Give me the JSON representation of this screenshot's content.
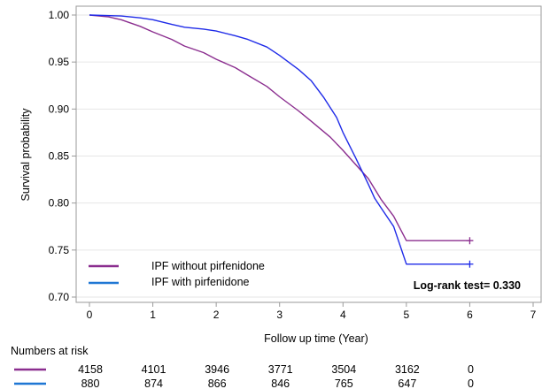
{
  "chart_data": {
    "type": "line",
    "xlabel": "Follow up time (Year)",
    "ylabel": "Survival probability",
    "xlim": [
      0,
      7
    ],
    "ylim": [
      0.7,
      1.0
    ],
    "x_ticks": [
      0,
      1,
      2,
      3,
      4,
      5,
      6,
      7
    ],
    "y_ticks": [
      "0.70",
      "0.75",
      "0.80",
      "0.85",
      "0.90",
      "0.95",
      "1.00"
    ],
    "grid": "horizontal",
    "legend_position": "bottom-left",
    "annotation": "Log-rank test= 0.330",
    "series": [
      {
        "name": "IPF without pirfenidone",
        "color": "#8B2E8F",
        "x": [
          0,
          0.3,
          0.5,
          0.8,
          1.0,
          1.3,
          1.5,
          1.8,
          2.0,
          2.3,
          2.5,
          2.8,
          3.0,
          3.3,
          3.5,
          3.8,
          4.0,
          4.2,
          4.4,
          4.6,
          4.8,
          5.0,
          6.0
        ],
        "y": [
          1.0,
          0.998,
          0.995,
          0.988,
          0.982,
          0.974,
          0.967,
          0.96,
          0.953,
          0.944,
          0.936,
          0.924,
          0.913,
          0.898,
          0.887,
          0.87,
          0.856,
          0.841,
          0.826,
          0.804,
          0.786,
          0.76,
          0.76
        ]
      },
      {
        "name": "IPF with pirfenidone",
        "color": "#1F2BE8",
        "x": [
          0,
          0.5,
          0.8,
          1.0,
          1.3,
          1.5,
          1.8,
          2.0,
          2.3,
          2.5,
          2.8,
          3.0,
          3.3,
          3.5,
          3.7,
          3.9,
          4.0,
          4.2,
          4.4,
          4.5,
          4.6,
          4.8,
          4.9,
          5.0,
          6.0
        ],
        "y": [
          1.0,
          0.999,
          0.997,
          0.995,
          0.99,
          0.987,
          0.985,
          0.983,
          0.978,
          0.974,
          0.966,
          0.957,
          0.942,
          0.93,
          0.912,
          0.891,
          0.875,
          0.848,
          0.82,
          0.805,
          0.795,
          0.775,
          0.755,
          0.735,
          0.735
        ]
      }
    ],
    "censor_marks": [
      {
        "series": 0,
        "x": 6.0,
        "y": 0.76
      },
      {
        "series": 1,
        "x": 6.0,
        "y": 0.735
      }
    ]
  },
  "risk_table": {
    "title": "Numbers at risk",
    "times": [
      0,
      1,
      2,
      3,
      4,
      5,
      6
    ],
    "rows": [
      {
        "series": 0,
        "values": [
          "4158",
          "4101",
          "3946",
          "3771",
          "3504",
          "3162",
          "0"
        ]
      },
      {
        "series": 1,
        "values": [
          "880",
          "874",
          "866",
          "846",
          "765",
          "647",
          "0"
        ]
      }
    ]
  }
}
